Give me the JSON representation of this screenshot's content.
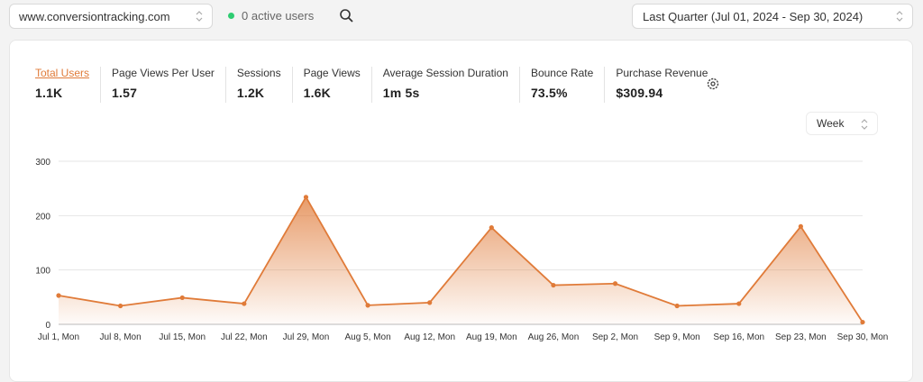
{
  "topbar": {
    "site": "www.conversiontracking.com",
    "active_users": "0 active users",
    "date_range": "Last Quarter (Jul 01, 2024 - Sep 30, 2024)"
  },
  "metrics": [
    {
      "label": "Total Users",
      "value": "1.1K"
    },
    {
      "label": "Page Views Per User",
      "value": "1.57"
    },
    {
      "label": "Sessions",
      "value": "1.2K"
    },
    {
      "label": "Page Views",
      "value": "1.6K"
    },
    {
      "label": "Average Session Duration",
      "value": "1m 5s"
    },
    {
      "label": "Bounce Rate",
      "value": "73.5%"
    },
    {
      "label": "Purchase Revenue",
      "value": "$309.94"
    }
  ],
  "period": "Week",
  "colors": {
    "accent": "#e07b39",
    "active_dot": "#2ecc71"
  },
  "chart_data": {
    "type": "area",
    "categories": [
      "Jul 1, Mon",
      "Jul 8, Mon",
      "Jul 15, Mon",
      "Jul 22, Mon",
      "Jul 29, Mon",
      "Aug 5, Mon",
      "Aug 12, Mon",
      "Aug 19, Mon",
      "Aug 26, Mon",
      "Sep 2, Mon",
      "Sep 9, Mon",
      "Sep 16, Mon",
      "Sep 23, Mon",
      "Sep 30, Mon"
    ],
    "series": [
      {
        "values": [
          53,
          34,
          49,
          38,
          234,
          35,
          40,
          178,
          72,
          75,
          34,
          38,
          180,
          4
        ]
      }
    ],
    "yticks": [
      0,
      100,
      200,
      300
    ],
    "ylim": [
      0,
      300
    ],
    "grid": true
  }
}
